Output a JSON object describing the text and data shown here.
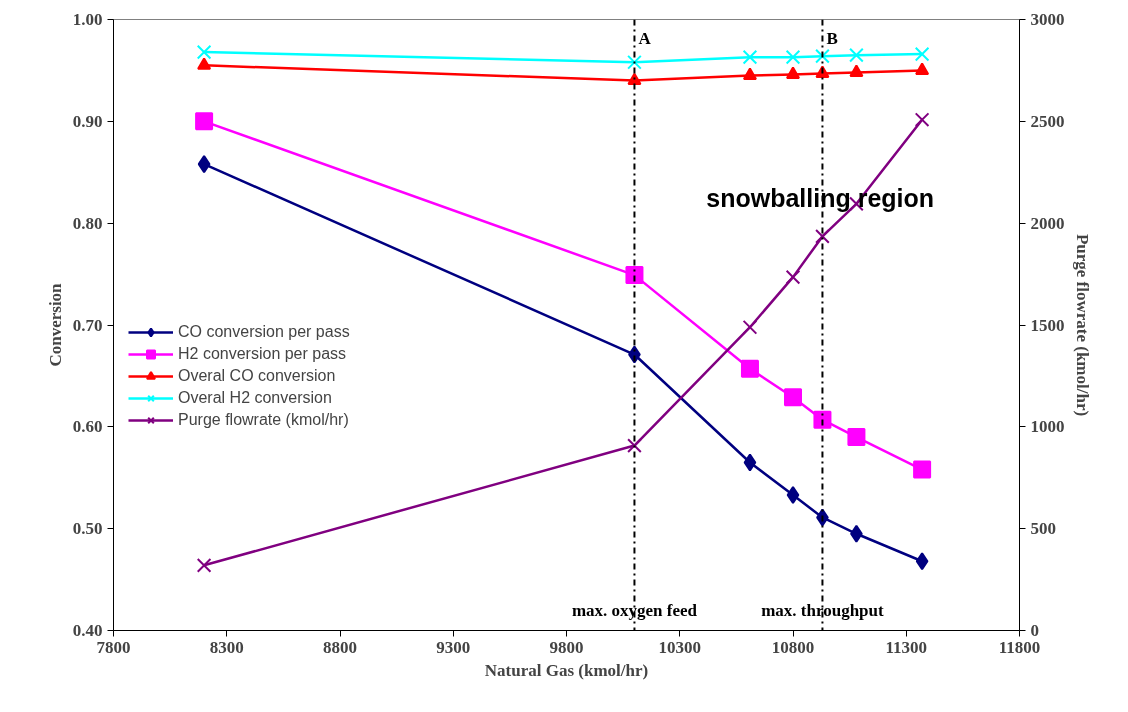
{
  "chart_data": {
    "type": "line",
    "xlabel": "Natural Gas (kmol/hr)",
    "ylabel": "Conversion",
    "y2label": "Purge flowrate (kmol/hr)",
    "x": [
      8200,
      10100,
      10610,
      10800,
      10930,
      11080,
      11370
    ],
    "series": [
      {
        "name": "CO conversion per pass",
        "color": "#000080",
        "marker": "diamond",
        "values": [
          0.858,
          0.671,
          0.565,
          0.533,
          0.511,
          0.495,
          0.468
        ]
      },
      {
        "name": "H2 conversion per pass",
        "color": "#ff00ff",
        "marker": "square",
        "values": [
          0.9,
          0.749,
          0.657,
          0.629,
          0.607,
          0.59,
          0.558
        ]
      },
      {
        "name": "Overal CO conversion",
        "color": "#ff0000",
        "marker": "triangle",
        "values": [
          0.955,
          0.94,
          0.945,
          0.946,
          0.947,
          0.948,
          0.95
        ]
      },
      {
        "name": "Overal H2 conversion",
        "color": "#00ffff",
        "marker": "cross",
        "values": [
          0.968,
          0.958,
          0.963,
          0.963,
          0.964,
          0.965,
          0.966
        ]
      },
      {
        "name": "Purge flowrate (kmol/hr)",
        "color": "#800080",
        "marker": "cross",
        "axis": "y2",
        "values": [
          320,
          908,
          1489,
          1735,
          1935,
          2095,
          2508
        ]
      }
    ],
    "xlim": [
      7800,
      11800
    ],
    "xticks": [
      7800,
      8300,
      8800,
      9300,
      9800,
      10300,
      10800,
      11300,
      11800
    ],
    "ylim": [
      0.4,
      1.0
    ],
    "yticks": [
      {
        "value": 0.4,
        "label": "0.40"
      },
      {
        "value": 0.5,
        "label": "0.50"
      },
      {
        "value": 0.6,
        "label": "0.60"
      },
      {
        "value": 0.7,
        "label": "0.70"
      },
      {
        "value": 0.8,
        "label": "0.80"
      },
      {
        "value": 0.9,
        "label": "0.90"
      },
      {
        "value": 1.0,
        "label": "1.00"
      }
    ],
    "y2lim": [
      0,
      3000
    ],
    "y2ticks": [
      0,
      500,
      1000,
      1500,
      2000,
      2500,
      3000
    ],
    "ref_lines": [
      {
        "axis": "x",
        "value": 10100,
        "label": "A",
        "color": "#000000",
        "line_style": "dashdot"
      },
      {
        "axis": "x",
        "value": 10930,
        "label": "B",
        "color": "#000000",
        "line_style": "dashdot"
      }
    ],
    "annotations": [
      {
        "text": "max. oxygen feed",
        "x": 10100,
        "y": 0.42
      },
      {
        "text": "max. throughput",
        "x": 10930,
        "y": 0.42
      },
      {
        "text": "snowballing region",
        "x": 10920,
        "y": 0.825
      }
    ],
    "legend": "left",
    "grid": false
  }
}
